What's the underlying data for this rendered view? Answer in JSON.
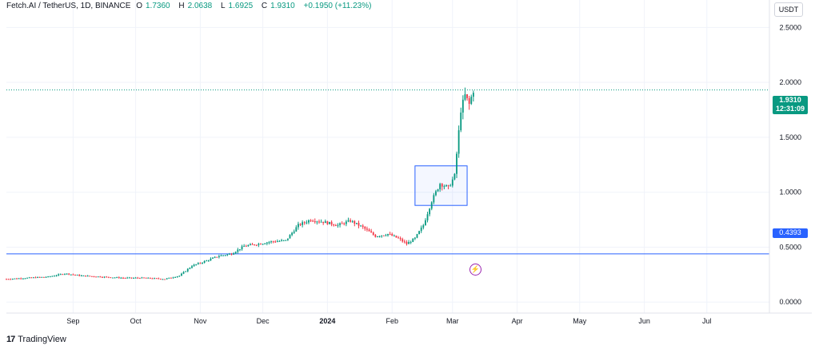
{
  "header": {
    "symbol": "Fetch.AI / TetherUS, 1D, BINANCE",
    "open_label": "O",
    "open": "1.7360",
    "high_label": "H",
    "high": "2.0638",
    "low_label": "L",
    "low": "1.6925",
    "close_label": "C",
    "close": "1.9310",
    "change": "+0.1950 (+11.23%)"
  },
  "axis_unit": "USDT",
  "last_price_tag": {
    "price": "1.9310",
    "countdown": "12:31:09"
  },
  "level_tag": "0.4393",
  "brand": "TradingView",
  "colors": {
    "up": "#089981",
    "down": "#f23645",
    "level": "#2962ff",
    "event": "#9c27b0"
  },
  "chart_data": {
    "type": "candlestick",
    "y_ticks": [
      "0.0000",
      "0.5000",
      "1.0000",
      "1.5000",
      "2.0000",
      "2.5000"
    ],
    "y_tick_values": [
      0,
      0.5,
      1.0,
      1.5,
      2.0,
      2.5
    ],
    "x_ticks": [
      "Sep",
      "Oct",
      "Nov",
      "Dec",
      "2024",
      "Feb",
      "Mar",
      "Apr",
      "May",
      "Jun",
      "Jul"
    ],
    "x_tick_dates": [
      "2023-09-01",
      "2023-10-01",
      "2023-11-01",
      "2023-12-01",
      "2024-01-01",
      "2024-02-01",
      "2024-03-01",
      "2024-04-01",
      "2024-05-01",
      "2024-06-01",
      "2024-07-01"
    ],
    "ylim": [
      -0.1,
      2.75
    ],
    "xlim": [
      "2023-07-31",
      "2024-07-31"
    ],
    "grid": true,
    "horizontal_level": 0.4393,
    "last_price": 1.931,
    "highlight_box": {
      "from": "2024-02-12",
      "to": "2024-03-08",
      "low": 0.88,
      "high": 1.24
    },
    "event_marker_date": "2024-03-08",
    "price_path": [
      [
        "2023-07-31",
        0.21
      ],
      [
        "2023-08-10",
        0.22
      ],
      [
        "2023-08-20",
        0.23
      ],
      [
        "2023-08-28",
        0.26
      ],
      [
        "2023-09-05",
        0.24
      ],
      [
        "2023-09-15",
        0.23
      ],
      [
        "2023-09-25",
        0.22
      ],
      [
        "2023-10-05",
        0.22
      ],
      [
        "2023-10-15",
        0.21
      ],
      [
        "2023-10-22",
        0.24
      ],
      [
        "2023-10-28",
        0.33
      ],
      [
        "2023-11-03",
        0.37
      ],
      [
        "2023-11-10",
        0.42
      ],
      [
        "2023-11-16",
        0.44
      ],
      [
        "2023-11-22",
        0.51
      ],
      [
        "2023-11-29",
        0.53
      ],
      [
        "2023-12-05",
        0.55
      ],
      [
        "2023-12-12",
        0.56
      ],
      [
        "2023-12-18",
        0.7
      ],
      [
        "2023-12-24",
        0.75
      ],
      [
        "2023-12-30",
        0.73
      ],
      [
        "2024-01-06",
        0.7
      ],
      [
        "2024-01-12",
        0.74
      ],
      [
        "2024-01-18",
        0.68
      ],
      [
        "2024-01-24",
        0.6
      ],
      [
        "2024-01-30",
        0.62
      ],
      [
        "2024-02-04",
        0.58
      ],
      [
        "2024-02-08",
        0.53
      ],
      [
        "2024-02-12",
        0.58
      ],
      [
        "2024-02-16",
        0.7
      ],
      [
        "2024-02-20",
        0.92
      ],
      [
        "2024-02-24",
        1.08
      ],
      [
        "2024-02-28",
        1.04
      ],
      [
        "2024-03-02",
        1.15
      ],
      [
        "2024-03-05",
        1.75
      ],
      [
        "2024-03-07",
        1.88
      ],
      [
        "2024-03-09",
        1.8
      ],
      [
        "2024-03-11",
        1.93
      ]
    ]
  }
}
